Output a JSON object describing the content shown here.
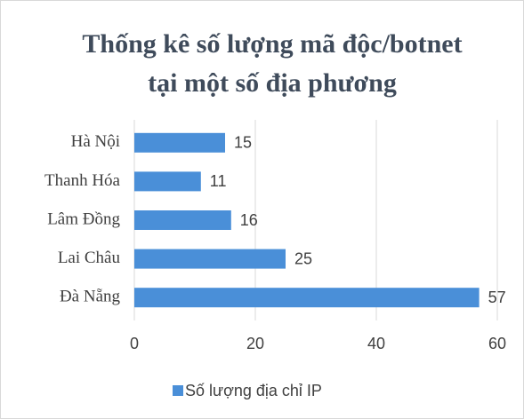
{
  "chart_data": {
    "type": "bar",
    "orientation": "horizontal",
    "title": [
      "Thống kê số lượng mã độc/botnet",
      "tại một số địa phương"
    ],
    "categories": [
      "Hà Nội",
      "Thanh Hóa",
      "Lâm Đồng",
      "Lai Châu",
      "Đà Nẵng"
    ],
    "series": [
      {
        "name": "Số lượng địa chỉ IP",
        "color": "#4a8fd8",
        "values": [
          15,
          11,
          16,
          25,
          57
        ]
      }
    ],
    "xlim": [
      0,
      60
    ],
    "xticks": [
      0,
      20,
      40,
      60
    ],
    "grid": true,
    "legend": "bottom"
  }
}
